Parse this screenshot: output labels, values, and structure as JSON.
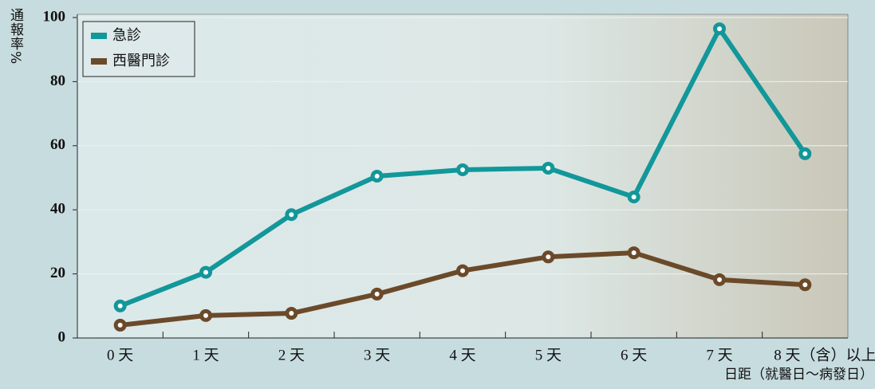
{
  "chart_data": {
    "type": "line",
    "y_label": "通報率%",
    "x_label": "日距（就醫日～病發日）",
    "categories": [
      "0 天",
      "1 天",
      "2 天",
      "3 天",
      "4 天",
      "5 天",
      "6 天",
      "7 天",
      "8 天（含）以上"
    ],
    "series": [
      {
        "name": "急診",
        "color": "#12979a",
        "values": [
          10,
          20.5,
          38.5,
          50.5,
          52.5,
          53,
          44,
          96.5,
          57.5
        ]
      },
      {
        "name": "西醫門診",
        "color": "#6b4a2a",
        "values": [
          4,
          7,
          7.7,
          13.7,
          21,
          25.3,
          26.6,
          18.2,
          16.6
        ]
      }
    ],
    "ylim": [
      0,
      100
    ],
    "yticks": [
      0,
      20,
      40,
      60,
      80,
      100
    ],
    "grid": true,
    "legend": "upper-left"
  }
}
